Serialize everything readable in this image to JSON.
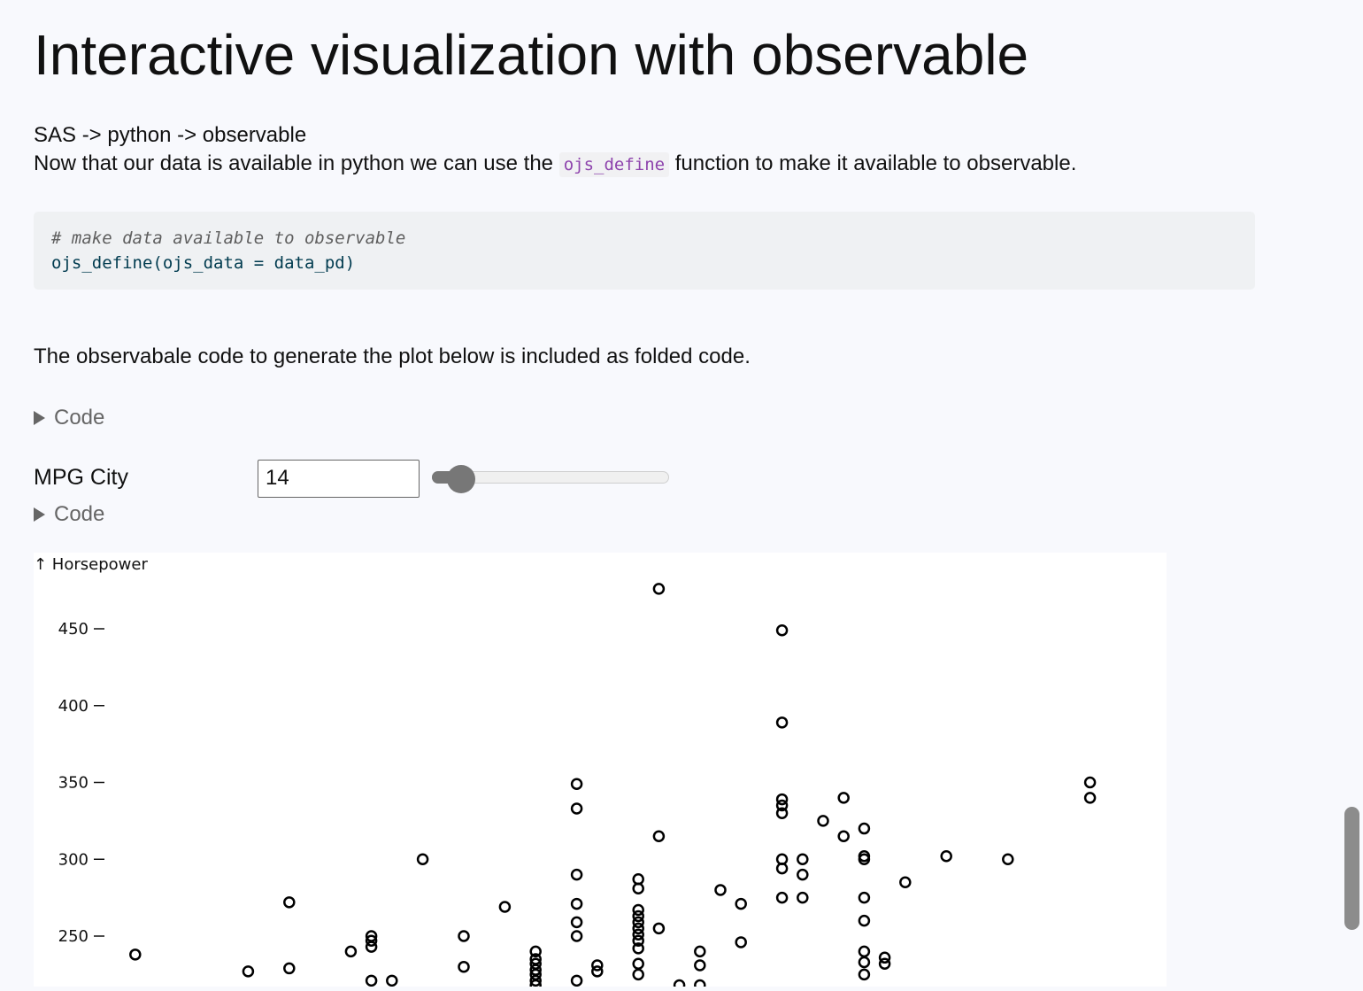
{
  "title": "Interactive visualization with observable",
  "intro": {
    "line1": "SAS -> python -> observable",
    "line2_before": "Now that our data is available in python we can use the",
    "line2_code": "ojs_define",
    "line2_after": "function to make it available to observable."
  },
  "codeblock": {
    "comment": "# make data available to observable",
    "code": "ojs_define(ojs_data = data_pd)"
  },
  "description": "The observabale code to generate the plot below is included as folded code.",
  "fold1": {
    "label": "Code"
  },
  "fold2": {
    "label": "Code"
  },
  "range": {
    "label": "MPG City",
    "value": "14",
    "min": 10,
    "max": 60,
    "fraction": 0.08
  },
  "chart_data": {
    "type": "scatter",
    "ylabel": "↑ Horsepower",
    "yticks": [
      250,
      300,
      350,
      400,
      450
    ],
    "x_range": [
      0,
      1
    ],
    "y_range": [
      215,
      480
    ],
    "points": [
      [
        0.03,
        238
      ],
      [
        0.14,
        227
      ],
      [
        0.18,
        272
      ],
      [
        0.18,
        229
      ],
      [
        0.24,
        240
      ],
      [
        0.26,
        250
      ],
      [
        0.26,
        247
      ],
      [
        0.26,
        243
      ],
      [
        0.26,
        221
      ],
      [
        0.28,
        221
      ],
      [
        0.31,
        300
      ],
      [
        0.35,
        250
      ],
      [
        0.35,
        230
      ],
      [
        0.39,
        269
      ],
      [
        0.42,
        240
      ],
      [
        0.42,
        235
      ],
      [
        0.42,
        232
      ],
      [
        0.42,
        228
      ],
      [
        0.42,
        225
      ],
      [
        0.42,
        221
      ],
      [
        0.42,
        218
      ],
      [
        0.46,
        349
      ],
      [
        0.46,
        333
      ],
      [
        0.46,
        290
      ],
      [
        0.46,
        271
      ],
      [
        0.46,
        259
      ],
      [
        0.46,
        250
      ],
      [
        0.46,
        221
      ],
      [
        0.48,
        231
      ],
      [
        0.48,
        227
      ],
      [
        0.52,
        287
      ],
      [
        0.52,
        281
      ],
      [
        0.52,
        267
      ],
      [
        0.52,
        263
      ],
      [
        0.52,
        259
      ],
      [
        0.52,
        255
      ],
      [
        0.52,
        251
      ],
      [
        0.52,
        247
      ],
      [
        0.52,
        242
      ],
      [
        0.52,
        232
      ],
      [
        0.52,
        225
      ],
      [
        0.54,
        476
      ],
      [
        0.54,
        315
      ],
      [
        0.54,
        255
      ],
      [
        0.56,
        218
      ],
      [
        0.58,
        240
      ],
      [
        0.58,
        231
      ],
      [
        0.58,
        218
      ],
      [
        0.6,
        280
      ],
      [
        0.62,
        271
      ],
      [
        0.62,
        246
      ],
      [
        0.66,
        449
      ],
      [
        0.66,
        389
      ],
      [
        0.66,
        339
      ],
      [
        0.66,
        335
      ],
      [
        0.66,
        330
      ],
      [
        0.66,
        300
      ],
      [
        0.66,
        294
      ],
      [
        0.66,
        275
      ],
      [
        0.68,
        300
      ],
      [
        0.68,
        290
      ],
      [
        0.68,
        275
      ],
      [
        0.7,
        325
      ],
      [
        0.72,
        340
      ],
      [
        0.72,
        315
      ],
      [
        0.74,
        320
      ],
      [
        0.74,
        302
      ],
      [
        0.74,
        300
      ],
      [
        0.74,
        275
      ],
      [
        0.74,
        260
      ],
      [
        0.74,
        240
      ],
      [
        0.74,
        233
      ],
      [
        0.74,
        225
      ],
      [
        0.76,
        236
      ],
      [
        0.76,
        232
      ],
      [
        0.78,
        285
      ],
      [
        0.82,
        302
      ],
      [
        0.88,
        300
      ],
      [
        0.96,
        350
      ],
      [
        0.96,
        340
      ]
    ]
  }
}
